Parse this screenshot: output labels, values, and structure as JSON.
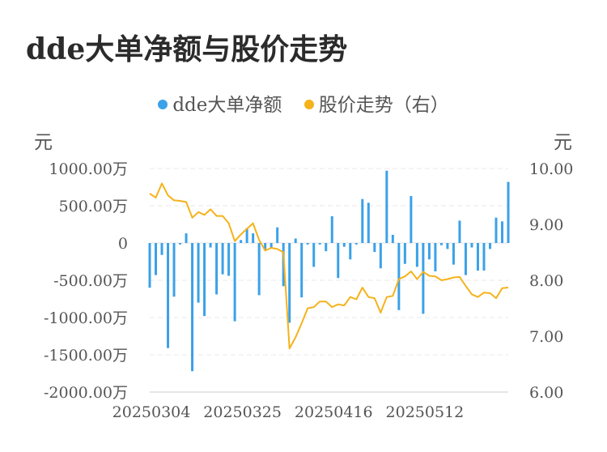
{
  "title": "dde大单净额与股价走势",
  "legend": [
    {
      "label": "dde大单净额",
      "color": "#3ba1e8"
    },
    {
      "label": "股价走势（右）",
      "color": "#f5b21a"
    }
  ],
  "unit_left": "元",
  "unit_right": "元",
  "chart_data": {
    "type": "bar+line",
    "title": "dde大单净额与股价走势",
    "y_left": {
      "ticks": [
        "1000.00万",
        "500.00万",
        "0",
        "-500.00万",
        "-1000.00万",
        "-1500.00万",
        "-2000.00万"
      ],
      "tick_values": [
        1000,
        500,
        0,
        -500,
        -1000,
        -1500,
        -2000
      ],
      "range": [
        -2000,
        1000
      ],
      "unit": "元"
    },
    "y_right": {
      "ticks": [
        "10.00",
        "9.00",
        "8.00",
        "7.00",
        "6.00"
      ],
      "tick_values": [
        10,
        9,
        8,
        7,
        6
      ],
      "range": [
        6,
        10
      ],
      "unit": "元"
    },
    "x_tick_labels": [
      {
        "label": "20250304",
        "index": 0
      },
      {
        "label": "20250325",
        "index": 15
      },
      {
        "label": "20250416",
        "index": 30
      },
      {
        "label": "20250512",
        "index": 45
      }
    ],
    "grid": true,
    "series": [
      {
        "name": "dde大单净额",
        "type": "bar",
        "color": "#3ba1e8",
        "values": [
          -600,
          -430,
          -160,
          -1410,
          -720,
          -20,
          130,
          -1720,
          -800,
          -980,
          -60,
          -690,
          -420,
          -440,
          -1050,
          40,
          200,
          130,
          -700,
          -100,
          -60,
          210,
          -580,
          -1070,
          60,
          -730,
          -20,
          -320,
          -20,
          -110,
          360,
          -470,
          -50,
          -220,
          -20,
          590,
          540,
          -120,
          -340,
          970,
          110,
          -900,
          -280,
          630,
          -320,
          -950,
          -220,
          -380,
          -30,
          -80,
          -290,
          300,
          -430,
          -60,
          -370,
          -370,
          -80,
          340,
          290,
          820
        ],
        "unit": "万元"
      },
      {
        "name": "股价走势（右）",
        "type": "line",
        "color": "#f5b21a",
        "values": [
          9.55,
          9.48,
          9.73,
          9.52,
          9.43,
          9.42,
          9.4,
          9.12,
          9.22,
          9.17,
          9.27,
          9.15,
          9.15,
          9.02,
          8.7,
          8.82,
          8.92,
          9.02,
          8.72,
          8.53,
          8.58,
          8.56,
          8.5,
          6.78,
          6.98,
          7.23,
          7.5,
          7.52,
          7.62,
          7.62,
          7.52,
          7.57,
          7.55,
          7.7,
          7.66,
          7.87,
          7.7,
          7.68,
          7.42,
          7.7,
          7.72,
          8.02,
          8.07,
          8.16,
          8.02,
          8.15,
          8.08,
          8.07,
          8.0,
          8.02,
          8.05,
          8.06,
          7.9,
          7.75,
          7.7,
          7.78,
          7.77,
          7.68,
          7.86,
          7.87
        ]
      }
    ]
  }
}
